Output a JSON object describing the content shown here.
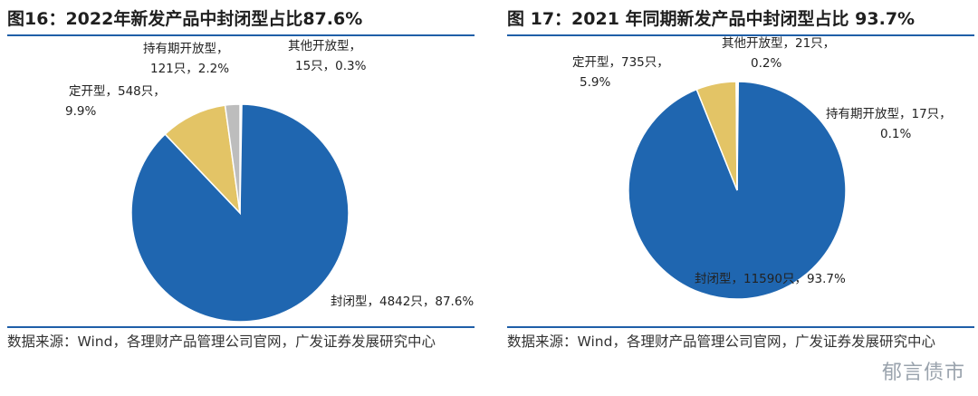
{
  "panels": [
    {
      "title": "图16：2022年新发产品中封闭型占比87.6%",
      "source": "数据来源：Wind，各理财产品管理公司官网，广发证券发展研究中心"
    },
    {
      "title": "图 17：2021 年同期新发产品中封闭型占比 93.7%",
      "source": "数据来源：Wind，各理财产品管理公司官网，广发证券发展研究中心"
    }
  ],
  "watermark": "郁言债市",
  "chart_data": [
    {
      "type": "pie",
      "title": "图16：2022年新发产品中封闭型占比87.6%",
      "slices": [
        {
          "name": "封闭型",
          "count_label": "4842只",
          "percent_label": "87.6%",
          "value": 4842,
          "color": "#1f66b0"
        },
        {
          "name": "定开型",
          "count_label": "548只",
          "percent_label": "9.9%",
          "value": 548,
          "color": "#e3c466"
        },
        {
          "name": "持有期开放型",
          "count_label": "121只",
          "percent_label": "2.2%",
          "value": 121,
          "color": "#bdbdbd"
        },
        {
          "name": "其他开放型",
          "count_label": "15只",
          "percent_label": "0.3%",
          "value": 15,
          "color": "#ffffff"
        }
      ]
    },
    {
      "type": "pie",
      "title": "图 17：2021 年同期新发产品中封闭型占比 93.7%",
      "slices": [
        {
          "name": "封闭型",
          "count_label": "11590只",
          "percent_label": "93.7%",
          "value": 11590,
          "color": "#1f66b0"
        },
        {
          "name": "定开型",
          "count_label": "735只",
          "percent_label": "5.9%",
          "value": 735,
          "color": "#e3c466"
        },
        {
          "name": "持有期开放型",
          "count_label": "17只",
          "percent_label": "0.1%",
          "value": 17,
          "color": "#bdbdbd"
        },
        {
          "name": "其他开放型",
          "count_label": "21只",
          "percent_label": "0.2%",
          "value": 21,
          "color": "#ffffff"
        }
      ]
    }
  ]
}
